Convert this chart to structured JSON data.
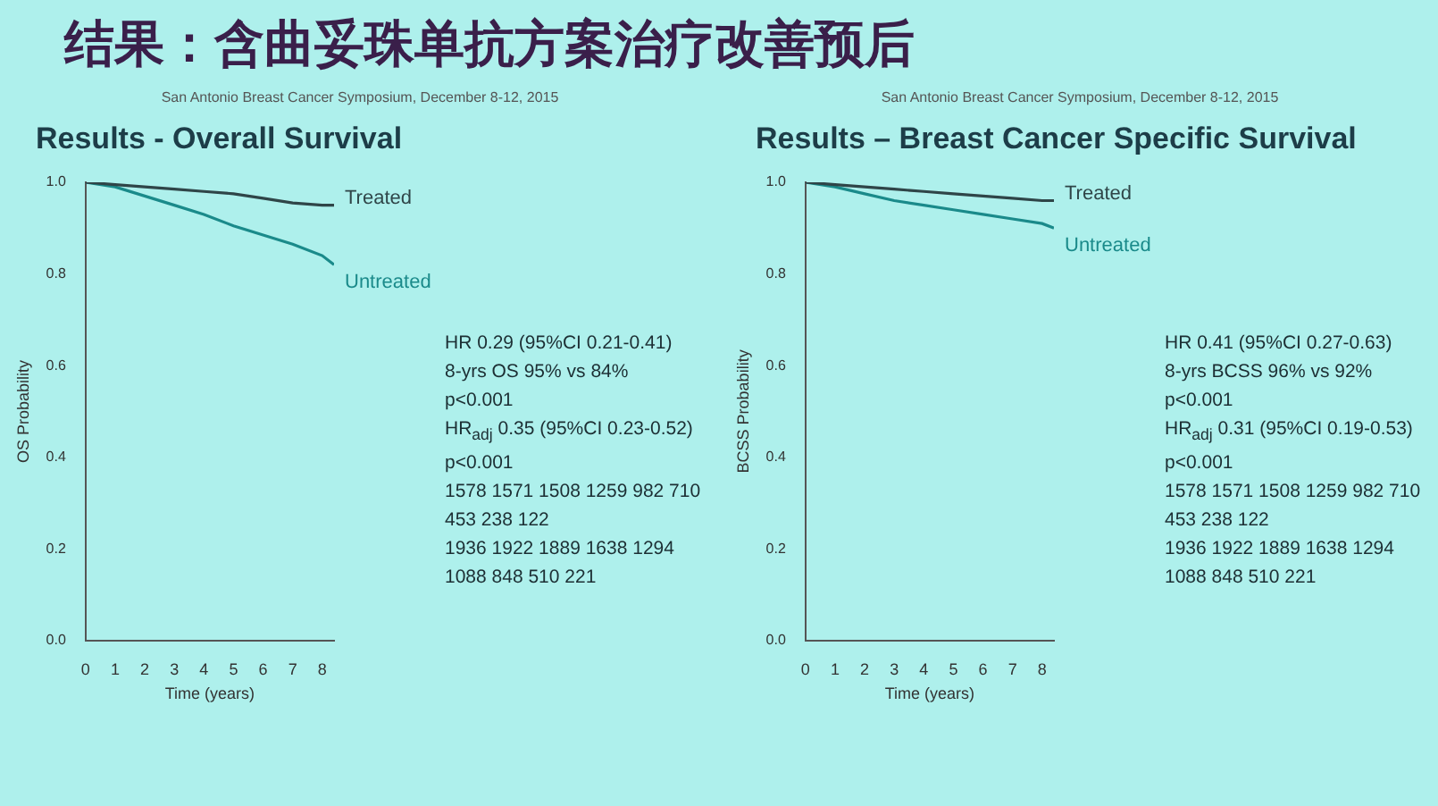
{
  "chart_data": [
    {
      "type": "other",
      "title": "结果：含曲妥珠单抗方案治疗改善预后"
    },
    {
      "type": "line",
      "subtitle": "San Antonio Breast Cancer Symposium, December 8-12, 2015",
      "title": "Results - Overall Survival",
      "xlabel": "Time (years)",
      "ylabel": "OS Probability",
      "xlim": [
        0,
        8.4
      ],
      "xticks": [
        0,
        1,
        2,
        3,
        4,
        5,
        6,
        7,
        8
      ],
      "ylim": [
        0,
        1
      ],
      "yticks": [
        {
          "value": 0,
          "label": "0.0"
        },
        {
          "value": 0.2,
          "label": "0.2"
        },
        {
          "value": 0.4,
          "label": "0.4"
        },
        {
          "value": 0.6,
          "label": "0.6"
        },
        {
          "value": 0.8,
          "label": "0.8"
        },
        {
          "value": 1,
          "label": "1.0"
        }
      ],
      "series": [
        {
          "name": "Treated",
          "color": "#2f4548",
          "x": [
            0,
            1,
            2,
            3,
            4,
            5,
            6,
            7,
            8,
            8.4
          ],
          "values": [
            1.0,
            0.995,
            0.99,
            0.985,
            0.98,
            0.975,
            0.965,
            0.955,
            0.95,
            0.95
          ]
        },
        {
          "name": "Untreated",
          "color": "#1a8a8a",
          "x": [
            0,
            1,
            2,
            3,
            4,
            5,
            6,
            7,
            8,
            8.4
          ],
          "values": [
            1.0,
            0.99,
            0.97,
            0.95,
            0.93,
            0.905,
            0.885,
            0.865,
            0.84,
            0.82
          ]
        }
      ],
      "annotations": [
        "HR 0.29 (95%CI 0.21-0.41)",
        "8-yrs OS 95% vs 84%",
        "p<0.001",
        "HR$_{adj}$ 0.35 (95%CI 0.23-0.52)",
        "p<0.001",
        "1578 1571 1508 1259 982 710 453 238 122",
        "1936 1922 1889 1638 1294 1088 848 510 221"
      ]
    },
    {
      "type": "line",
      "subtitle": "San Antonio Breast Cancer Symposium, December 8-12, 2015",
      "title": "Results – Breast Cancer Specific Survival",
      "xlabel": "Time (years)",
      "ylabel": "BCSS Probability",
      "xlim": [
        0,
        8.4
      ],
      "xticks": [
        0,
        1,
        2,
        3,
        4,
        5,
        6,
        7,
        8
      ],
      "ylim": [
        0,
        1
      ],
      "yticks": [
        {
          "value": 0,
          "label": "0.0"
        },
        {
          "value": 0.2,
          "label": "0.2"
        },
        {
          "value": 0.4,
          "label": "0.4"
        },
        {
          "value": 0.6,
          "label": "0.6"
        },
        {
          "value": 0.8,
          "label": "0.8"
        },
        {
          "value": 1,
          "label": "1.0"
        }
      ],
      "series": [
        {
          "name": "Treated",
          "color": "#2f4548",
          "x": [
            0,
            1,
            2,
            3,
            4,
            5,
            6,
            7,
            8,
            8.4
          ],
          "values": [
            1.0,
            0.995,
            0.99,
            0.985,
            0.98,
            0.975,
            0.97,
            0.965,
            0.96,
            0.96
          ]
        },
        {
          "name": "Untreated",
          "color": "#1a8a8a",
          "x": [
            0,
            1,
            2,
            3,
            4,
            5,
            6,
            7,
            8,
            8.4
          ],
          "values": [
            1.0,
            0.99,
            0.975,
            0.96,
            0.95,
            0.94,
            0.93,
            0.92,
            0.91,
            0.9
          ]
        }
      ],
      "annotations": [
        "HR 0.41 (95%CI 0.27-0.63)",
        "8-yrs BCSS 96% vs 92%",
        "p<0.001",
        "HR$_{adj}$ 0.31 (95%CI 0.19-0.53)",
        "p<0.001",
        "1578 1571 1508 1259 982 710 453 238 122",
        "1936 1922 1889 1638 1294 1088 848 510 221"
      ]
    }
  ]
}
